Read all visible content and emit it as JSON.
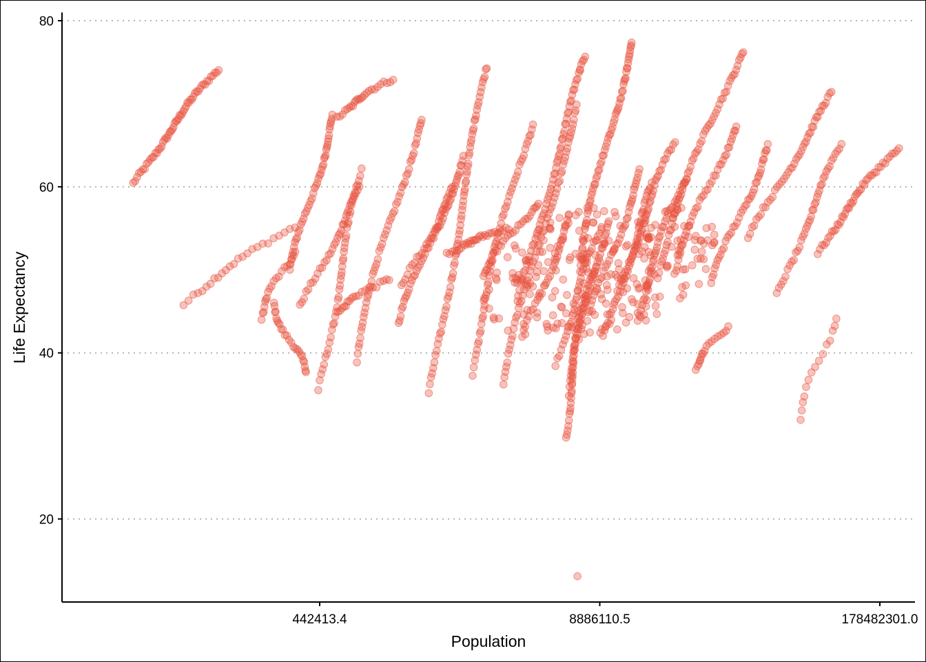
{
  "chart_data": {
    "type": "scatter",
    "title": "",
    "xlabel": "Population",
    "ylabel": "Life Expectancy",
    "x_scale": "log",
    "xlim": [
      28000,
      260000000
    ],
    "ylim": [
      10,
      81
    ],
    "x_ticks": [
      442413.4,
      8886110.5,
      178482301.0
    ],
    "x_tick_labels": [
      "442413.4",
      "8886110.5",
      "178482301.0"
    ],
    "y_ticks": [
      20,
      40,
      60,
      80
    ],
    "y_tick_labels": [
      "20",
      "40",
      "60",
      "80"
    ],
    "grid": "horizontal-dotted",
    "legend": "none",
    "colors": {
      "points": "#e8523f",
      "grid": "#b3b3b3",
      "axis": "#000000"
    },
    "point_opacity": 0.35,
    "series_note": "points omitted in JSON are generated as country trajectories",
    "trajectories": [
      {
        "x0": 60000,
        "x1": 150000,
        "y0": 60.4,
        "y1": 74.1,
        "n": 55
      },
      {
        "x0": 100000,
        "x1": 330000,
        "y0": 45.8,
        "y1": 55.2,
        "n": 25
      },
      {
        "x0": 230000,
        "x1": 330000,
        "y0": 44.0,
        "y1": 52.0,
        "n": 20
      },
      {
        "x0": 270000,
        "x1": 380000,
        "y0": 46.0,
        "y1": 37.8,
        "n": 25
      },
      {
        "x0": 330000,
        "x1": 520000,
        "y0": 50.0,
        "y1": 68.7,
        "n": 45
      },
      {
        "x0": 370000,
        "x1": 700000,
        "y0": 45.6,
        "y1": 60.0,
        "n": 35
      },
      {
        "x0": 440000,
        "x1": 700000,
        "y0": 35.6,
        "y1": 62.0,
        "n": 45
      },
      {
        "x0": 520000,
        "x1": 950000,
        "y0": 68.3,
        "y1": 73.0,
        "n": 25
      },
      {
        "x0": 520000,
        "x1": 900000,
        "y0": 44.8,
        "y1": 48.9,
        "n": 20
      },
      {
        "x0": 650000,
        "x1": 1300000,
        "y0": 39.0,
        "y1": 68.2,
        "n": 55
      },
      {
        "x0": 1050000,
        "x1": 2100000,
        "y0": 43.5,
        "y1": 63.5,
        "n": 50
      },
      {
        "x0": 1100000,
        "x1": 1900000,
        "y0": 48.0,
        "y1": 60.0,
        "n": 30
      },
      {
        "x0": 1450000,
        "x1": 2700000,
        "y0": 35.2,
        "y1": 74.5,
        "n": 70
      },
      {
        "x0": 1700000,
        "x1": 3300000,
        "y0": 52.0,
        "y1": 55.0,
        "n": 30
      },
      {
        "x0": 2200000,
        "x1": 4200000,
        "y0": 37.4,
        "y1": 67.5,
        "n": 55
      },
      {
        "x0": 2500000,
        "x1": 4500000,
        "y0": 49.0,
        "y1": 58.0,
        "n": 30
      },
      {
        "x0": 3200000,
        "x1": 7000000,
        "y0": 36.0,
        "y1": 69.8,
        "n": 60
      },
      {
        "x0": 4000000,
        "x1": 6500000,
        "y0": 42.0,
        "y1": 56.0,
        "n": 30
      },
      {
        "x0": 3800000,
        "x1": 7800000,
        "y0": 47.0,
        "y1": 75.9,
        "n": 60
      },
      {
        "x0": 5500000,
        "x1": 9000000,
        "y0": 38.5,
        "y1": 55.0,
        "n": 35
      },
      {
        "x0": 6000000,
        "x1": 8200000,
        "y0": 29.6,
        "y1": 50.0,
        "n": 45
      },
      {
        "x0": 6200000,
        "x1": 9500000,
        "y0": 35.0,
        "y1": 56.0,
        "n": 40
      },
      {
        "x0": 7200000,
        "x1": 12500000,
        "y0": 50.0,
        "y1": 77.6,
        "n": 65
      },
      {
        "x0": 8000000,
        "x1": 14000000,
        "y0": 44.0,
        "y1": 62.0,
        "n": 40
      },
      {
        "x0": 9500000,
        "x1": 16000000,
        "y0": 42.0,
        "y1": 60.5,
        "n": 40
      },
      {
        "x0": 11000000,
        "x1": 20000000,
        "y0": 48.0,
        "y1": 65.5,
        "n": 40
      },
      {
        "x0": 13000000,
        "x1": 22000000,
        "y0": 44.0,
        "y1": 61.0,
        "n": 40
      },
      {
        "x0": 16000000,
        "x1": 40000000,
        "y0": 49.0,
        "y1": 76.3,
        "n": 60
      },
      {
        "x0": 20000000,
        "x1": 38000000,
        "y0": 50.0,
        "y1": 67.3,
        "n": 40
      },
      {
        "x0": 30000000,
        "x1": 55000000,
        "y0": 48.4,
        "y1": 65.0,
        "n": 40
      },
      {
        "x0": 45000000,
        "x1": 110000000,
        "y0": 54.0,
        "y1": 71.4,
        "n": 45
      },
      {
        "x0": 60000000,
        "x1": 120000000,
        "y0": 47.0,
        "y1": 65.2,
        "n": 40
      },
      {
        "x0": 90000000,
        "x1": 215000000,
        "y0": 52.0,
        "y1": 64.6,
        "n": 45
      },
      {
        "x0": 24000000,
        "x1": 34000000,
        "y0": 37.8,
        "y1": 43.0,
        "n": 18
      },
      {
        "x0": 75000000,
        "x1": 110000000,
        "y0": 31.8,
        "y1": 44.0,
        "n": 15
      }
    ],
    "cluster": {
      "x_center": 9000000,
      "y_center": 50.0,
      "n": 260
    },
    "outliers": [
      [
        7000000,
        13.1
      ],
      [
        7200000,
        74.0
      ]
    ]
  }
}
